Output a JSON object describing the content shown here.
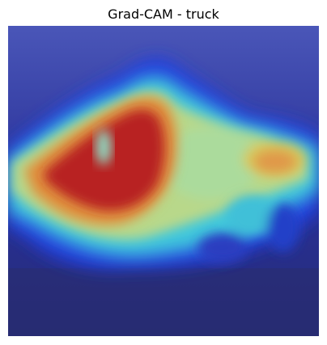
{
  "figure": {
    "title": "Grad-CAM - truck"
  },
  "image": {
    "class_label": "truck",
    "method": "Grad-CAM",
    "colormap": "jet",
    "colors": {
      "cold": "#1a1a8c",
      "cool": "#1f3dd6",
      "cyan": "#38c8d8",
      "green": "#8fd6a0",
      "yellow": "#d8d870",
      "orange": "#e08a3a",
      "red": "#b81e1e"
    }
  }
}
